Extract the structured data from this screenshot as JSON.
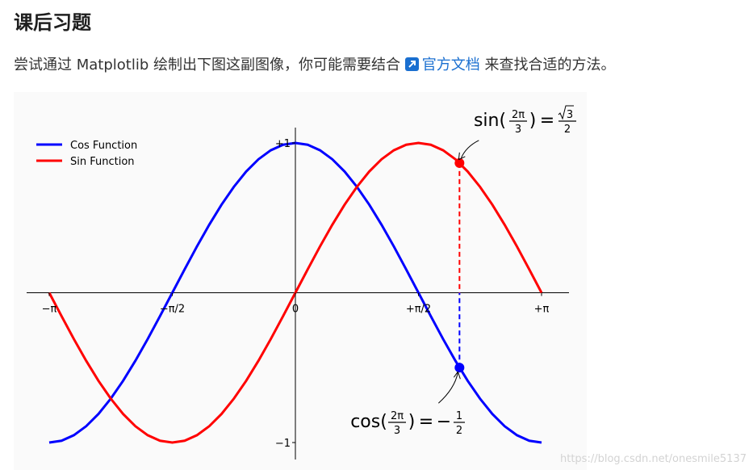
{
  "heading": "课后习题",
  "intro": {
    "before": "尝试通过 Matplotlib 绘制出下图这副图像，你可能需要结合 ",
    "link_text": "官方文档",
    "after": " 来查找合适的方法。",
    "link_icon": "external-link-icon"
  },
  "watermark": "https://blog.csdn.net/onesmile5137",
  "chart_data": {
    "type": "line",
    "title": "",
    "xlabel": "",
    "ylabel": "",
    "xlim": [
      -3.1416,
      3.1416
    ],
    "ylim": [
      -1.0,
      1.0
    ],
    "x_ticks": [
      {
        "value": -3.1416,
        "label": "−π"
      },
      {
        "value": -1.5708,
        "label": "−π/2"
      },
      {
        "value": 0,
        "label": "0"
      },
      {
        "value": 1.5708,
        "label": "+π/2"
      },
      {
        "value": 3.1416,
        "label": "+π"
      }
    ],
    "y_ticks": [
      {
        "value": -1,
        "label": "−1"
      },
      {
        "value": 1,
        "label": "+1"
      }
    ],
    "legend_position": "top-left",
    "series": [
      {
        "name": "Cos Function",
        "color": "#0000ff",
        "x": [
          -3.1416,
          -2.9845,
          -2.8274,
          -2.6704,
          -2.5133,
          -2.3562,
          -2.1991,
          -2.042,
          -1.885,
          -1.7279,
          -1.5708,
          -1.4137,
          -1.2566,
          -1.0996,
          -0.9425,
          -0.7854,
          -0.6283,
          -0.4712,
          -0.3142,
          -0.1571,
          0,
          0.1571,
          0.3142,
          0.4712,
          0.6283,
          0.7854,
          0.9425,
          1.0996,
          1.2566,
          1.4137,
          1.5708,
          1.7279,
          1.885,
          2.042,
          2.1991,
          2.3562,
          2.5133,
          2.6704,
          2.8274,
          2.9845,
          3.1416
        ],
        "y": [
          -1.0,
          -0.988,
          -0.951,
          -0.891,
          -0.809,
          -0.707,
          -0.588,
          -0.454,
          -0.309,
          -0.156,
          0.0,
          0.156,
          0.309,
          0.454,
          0.588,
          0.707,
          0.809,
          0.891,
          0.951,
          0.988,
          1.0,
          0.988,
          0.951,
          0.891,
          0.809,
          0.707,
          0.588,
          0.454,
          0.309,
          0.156,
          0.0,
          -0.156,
          -0.309,
          -0.454,
          -0.588,
          -0.707,
          -0.809,
          -0.891,
          -0.951,
          -0.988,
          -1.0
        ]
      },
      {
        "name": "Sin Function",
        "color": "#ff0000",
        "x": [
          -3.1416,
          -2.9845,
          -2.8274,
          -2.6704,
          -2.5133,
          -2.3562,
          -2.1991,
          -2.042,
          -1.885,
          -1.7279,
          -1.5708,
          -1.4137,
          -1.2566,
          -1.0996,
          -0.9425,
          -0.7854,
          -0.6283,
          -0.4712,
          -0.3142,
          -0.1571,
          0,
          0.1571,
          0.3142,
          0.4712,
          0.6283,
          0.7854,
          0.9425,
          1.0996,
          1.2566,
          1.4137,
          1.5708,
          1.7279,
          1.885,
          2.042,
          2.1991,
          2.3562,
          2.5133,
          2.6704,
          2.8274,
          2.9845,
          3.1416
        ],
        "y": [
          0.0,
          -0.156,
          -0.309,
          -0.454,
          -0.588,
          -0.707,
          -0.809,
          -0.891,
          -0.951,
          -0.988,
          -1.0,
          -0.988,
          -0.951,
          -0.891,
          -0.809,
          -0.707,
          -0.588,
          -0.454,
          -0.309,
          -0.156,
          0.0,
          0.156,
          0.309,
          0.454,
          0.588,
          0.707,
          0.809,
          0.891,
          0.951,
          0.988,
          1.0,
          0.988,
          0.951,
          0.891,
          0.809,
          0.707,
          0.588,
          0.454,
          0.309,
          0.156,
          0.0
        ]
      }
    ],
    "markers": [
      {
        "x": 2.0944,
        "y": 0.866,
        "color": "#ff0000"
      },
      {
        "x": 2.0944,
        "y": -0.5,
        "color": "#0000ff"
      }
    ],
    "annotations": [
      {
        "point_x": 2.0944,
        "point_y": 0.866,
        "fn": "sin",
        "num": "2π",
        "den": "3",
        "equals": "=",
        "rhs_sign": "",
        "rhs_num": "3",
        "rhs_den": "2",
        "rhs_sqrt": true
      },
      {
        "point_x": 2.0944,
        "point_y": -0.5,
        "fn": "cos",
        "num": "2π",
        "den": "3",
        "equals": "=",
        "rhs_sign": "−",
        "rhs_num": "1",
        "rhs_den": "2",
        "rhs_sqrt": false
      }
    ]
  }
}
